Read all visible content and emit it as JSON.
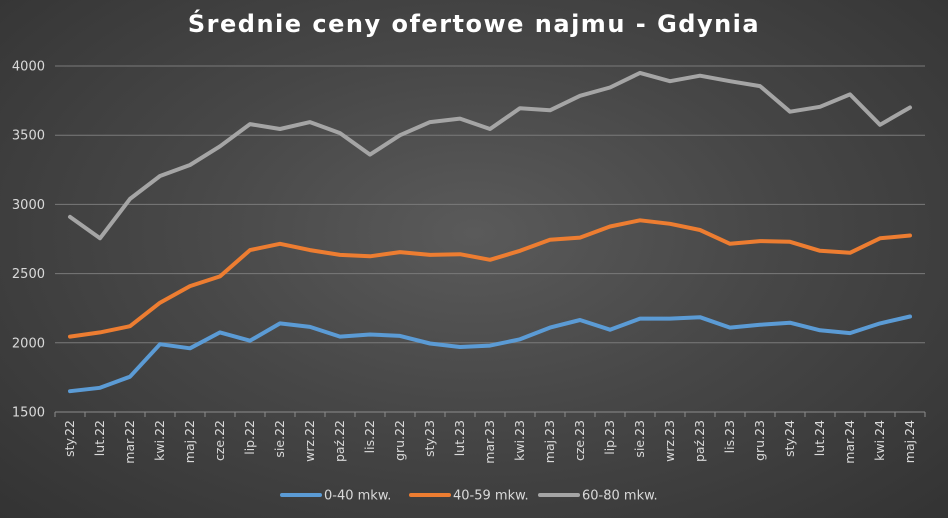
{
  "chart_data": {
    "type": "line",
    "title": "Średnie ceny ofertowe najmu - Gdynia",
    "xlabel": "",
    "ylabel": "",
    "ylim": [
      1500,
      4000
    ],
    "yticks": [
      1500,
      2000,
      2500,
      3000,
      3500,
      4000
    ],
    "grid": true,
    "legend_position": "bottom",
    "categories": [
      "sty.22",
      "lut.22",
      "mar.22",
      "kwi.22",
      "maj.22",
      "cze.22",
      "lip.22",
      "sie.22",
      "wrz.22",
      "paź.22",
      "lis.22",
      "gru.22",
      "sty.23",
      "lut.23",
      "mar.23",
      "kwi.23",
      "maj.23",
      "cze.23",
      "lip.23",
      "sie.23",
      "wrz.23",
      "paź.23",
      "lis.23",
      "gru.23",
      "sty.24",
      "lut.24",
      "mar.24",
      "kwi.24",
      "maj.24"
    ],
    "series": [
      {
        "name": "0-40 mkw.",
        "color": "#5b9bd5",
        "values": [
          1650,
          1675,
          1755,
          1990,
          1960,
          2075,
          2015,
          2140,
          2115,
          2045,
          2060,
          2050,
          1995,
          1970,
          1980,
          2025,
          2110,
          2165,
          2095,
          2175,
          2175,
          2185,
          2110,
          2130,
          2145,
          2090,
          2070,
          2140,
          2190
        ]
      },
      {
        "name": "40-59 mkw.",
        "color": "#ed7d31",
        "values": [
          2045,
          2075,
          2120,
          2290,
          2410,
          2480,
          2670,
          2715,
          2670,
          2635,
          2625,
          2655,
          2635,
          2640,
          2600,
          2665,
          2745,
          2760,
          2840,
          2885,
          2860,
          2815,
          2715,
          2735,
          2730,
          2665,
          2650,
          2755,
          2775
        ]
      },
      {
        "name": "60-80 mkw.",
        "color": "#a5a5a5",
        "values": [
          2910,
          2755,
          3040,
          3205,
          3285,
          3420,
          3580,
          3545,
          3595,
          3515,
          3360,
          3500,
          3595,
          3620,
          3545,
          3695,
          3680,
          3785,
          3845,
          3950,
          3890,
          3930,
          3890,
          3855,
          3670,
          3705,
          3795,
          3575,
          3700
        ]
      }
    ]
  }
}
